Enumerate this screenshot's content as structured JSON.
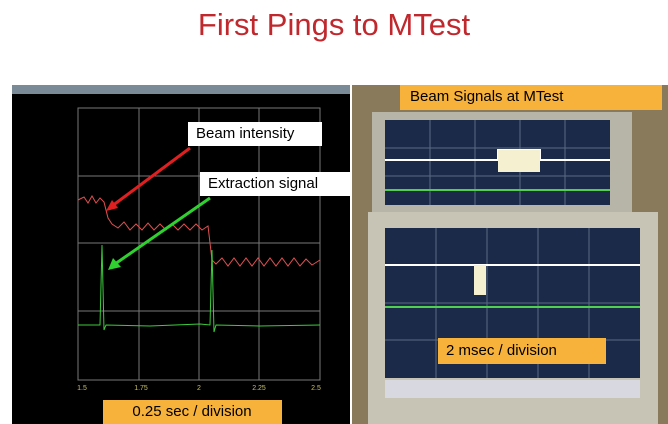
{
  "title": "First Pings to MTest",
  "left_panel": {
    "annotations": [
      "Beam intensity",
      "Extraction signal"
    ],
    "x_ticks": [
      "1.5",
      "1.75",
      "2",
      "2.25",
      "2.5"
    ],
    "caption": "0.25 sec / division"
  },
  "right_panel": {
    "caption": "Beam Signals at MTest",
    "scale_label": "2 msec / division"
  }
}
